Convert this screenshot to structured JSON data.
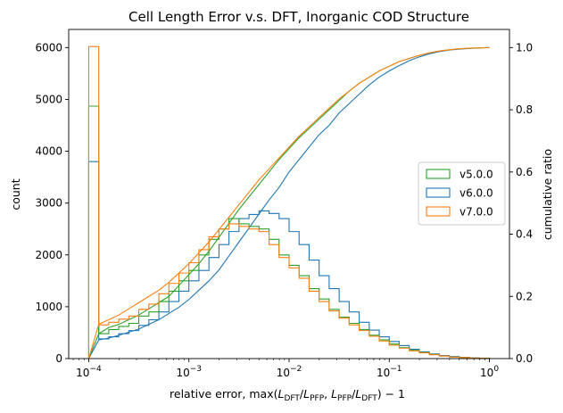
{
  "chart_data": {
    "type": "histogram+line",
    "title": "Cell Length Error v.s. DFT, Inorganic COD Structure",
    "xlabel": "relative error, max(L_DFT/L_PFP, L_PFP/L_DFT) − 1",
    "xlabel_parts": {
      "prefix": "relative error, max(",
      "L": "L",
      "sub_dft": "DFT",
      "sub_pfp": "PFP",
      "suffix": ") − 1",
      "slash": "/",
      "comma": ", "
    },
    "ylabel": "count",
    "y2label": "cumulative ratio",
    "xscale": "log",
    "xlim_log10": [
      -4.2,
      0.2
    ],
    "ylim": [
      0,
      6350
    ],
    "y2lim": [
      0,
      1.0583
    ],
    "x_ticks": [
      {
        "exp": -4,
        "label_base": "10",
        "label_exp": "−4"
      },
      {
        "exp": -3,
        "label_base": "10",
        "label_exp": "−3"
      },
      {
        "exp": -2,
        "label_base": "10",
        "label_exp": "−2"
      },
      {
        "exp": -1,
        "label_base": "10",
        "label_exp": "−1"
      },
      {
        "exp": 0,
        "label_base": "10",
        "label_exp": "0"
      }
    ],
    "y_ticks": [
      0,
      1000,
      2000,
      3000,
      4000,
      5000,
      6000
    ],
    "y2_ticks": [
      "0.0",
      "0.2",
      "0.4",
      "0.6",
      "0.8",
      "1.0"
    ],
    "bins": {
      "first_edge_log10": -4,
      "bin_width_log10": 0.1,
      "count": 40
    },
    "series": [
      {
        "name": "v5.0.0",
        "color": "#2ca02c",
        "hist": [
          4870,
          480,
          560,
          620,
          680,
          820,
          900,
          1100,
          1300,
          1500,
          1700,
          2000,
          2300,
          2500,
          2700,
          2600,
          2550,
          2500,
          2300,
          2000,
          1800,
          1600,
          1350,
          1150,
          950,
          800,
          680,
          560,
          450,
          360,
          280,
          210,
          160,
          120,
          80,
          50,
          30,
          20,
          10,
          5
        ],
        "cumulative": [
          0.0,
          0.08,
          0.1,
          0.11,
          0.125,
          0.14,
          0.16,
          0.18,
          0.2,
          0.235,
          0.27,
          0.305,
          0.345,
          0.39,
          0.435,
          0.48,
          0.52,
          0.56,
          0.6,
          0.64,
          0.675,
          0.71,
          0.74,
          0.77,
          0.8,
          0.83,
          0.86,
          0.885,
          0.905,
          0.925,
          0.94,
          0.955,
          0.965,
          0.975,
          0.983,
          0.989,
          0.993,
          0.996,
          0.998,
          0.999,
          1.0
        ]
      },
      {
        "name": "v6.0.0",
        "color": "#1f77b4",
        "hist": [
          3800,
          380,
          420,
          480,
          540,
          640,
          750,
          900,
          1100,
          1300,
          1500,
          1700,
          1950,
          2200,
          2450,
          2700,
          2780,
          2850,
          2800,
          2700,
          2450,
          2200,
          1900,
          1600,
          1350,
          1100,
          900,
          700,
          550,
          420,
          330,
          250,
          180,
          130,
          90,
          60,
          40,
          25,
          12,
          5
        ],
        "cumulative": [
          0.0,
          0.06,
          0.066,
          0.075,
          0.085,
          0.095,
          0.11,
          0.125,
          0.145,
          0.165,
          0.19,
          0.22,
          0.25,
          0.285,
          0.33,
          0.375,
          0.42,
          0.465,
          0.51,
          0.55,
          0.6,
          0.64,
          0.68,
          0.72,
          0.75,
          0.79,
          0.82,
          0.85,
          0.88,
          0.905,
          0.925,
          0.942,
          0.958,
          0.97,
          0.98,
          0.987,
          0.992,
          0.995,
          0.997,
          0.999,
          1.0
        ]
      },
      {
        "name": "v7.0.0",
        "color": "#ff7f0e",
        "hist": [
          6020,
          650,
          700,
          760,
          820,
          950,
          1050,
          1250,
          1450,
          1650,
          1850,
          2100,
          2350,
          2500,
          2600,
          2550,
          2500,
          2450,
          2200,
          1950,
          1750,
          1550,
          1300,
          1100,
          920,
          780,
          650,
          540,
          430,
          340,
          260,
          200,
          150,
          110,
          75,
          50,
          30,
          20,
          10,
          5
        ],
        "cumulative": [
          0.0,
          0.11,
          0.125,
          0.14,
          0.16,
          0.18,
          0.2,
          0.22,
          0.245,
          0.275,
          0.305,
          0.34,
          0.375,
          0.415,
          0.455,
          0.495,
          0.535,
          0.575,
          0.61,
          0.645,
          0.68,
          0.715,
          0.745,
          0.775,
          0.805,
          0.835,
          0.86,
          0.885,
          0.905,
          0.925,
          0.94,
          0.955,
          0.965,
          0.975,
          0.983,
          0.989,
          0.993,
          0.996,
          0.998,
          0.999,
          1.0
        ]
      }
    ],
    "legend": {
      "placement": "center-right",
      "entries": [
        "v5.0.0",
        "v6.0.0",
        "v7.0.0"
      ]
    }
  }
}
